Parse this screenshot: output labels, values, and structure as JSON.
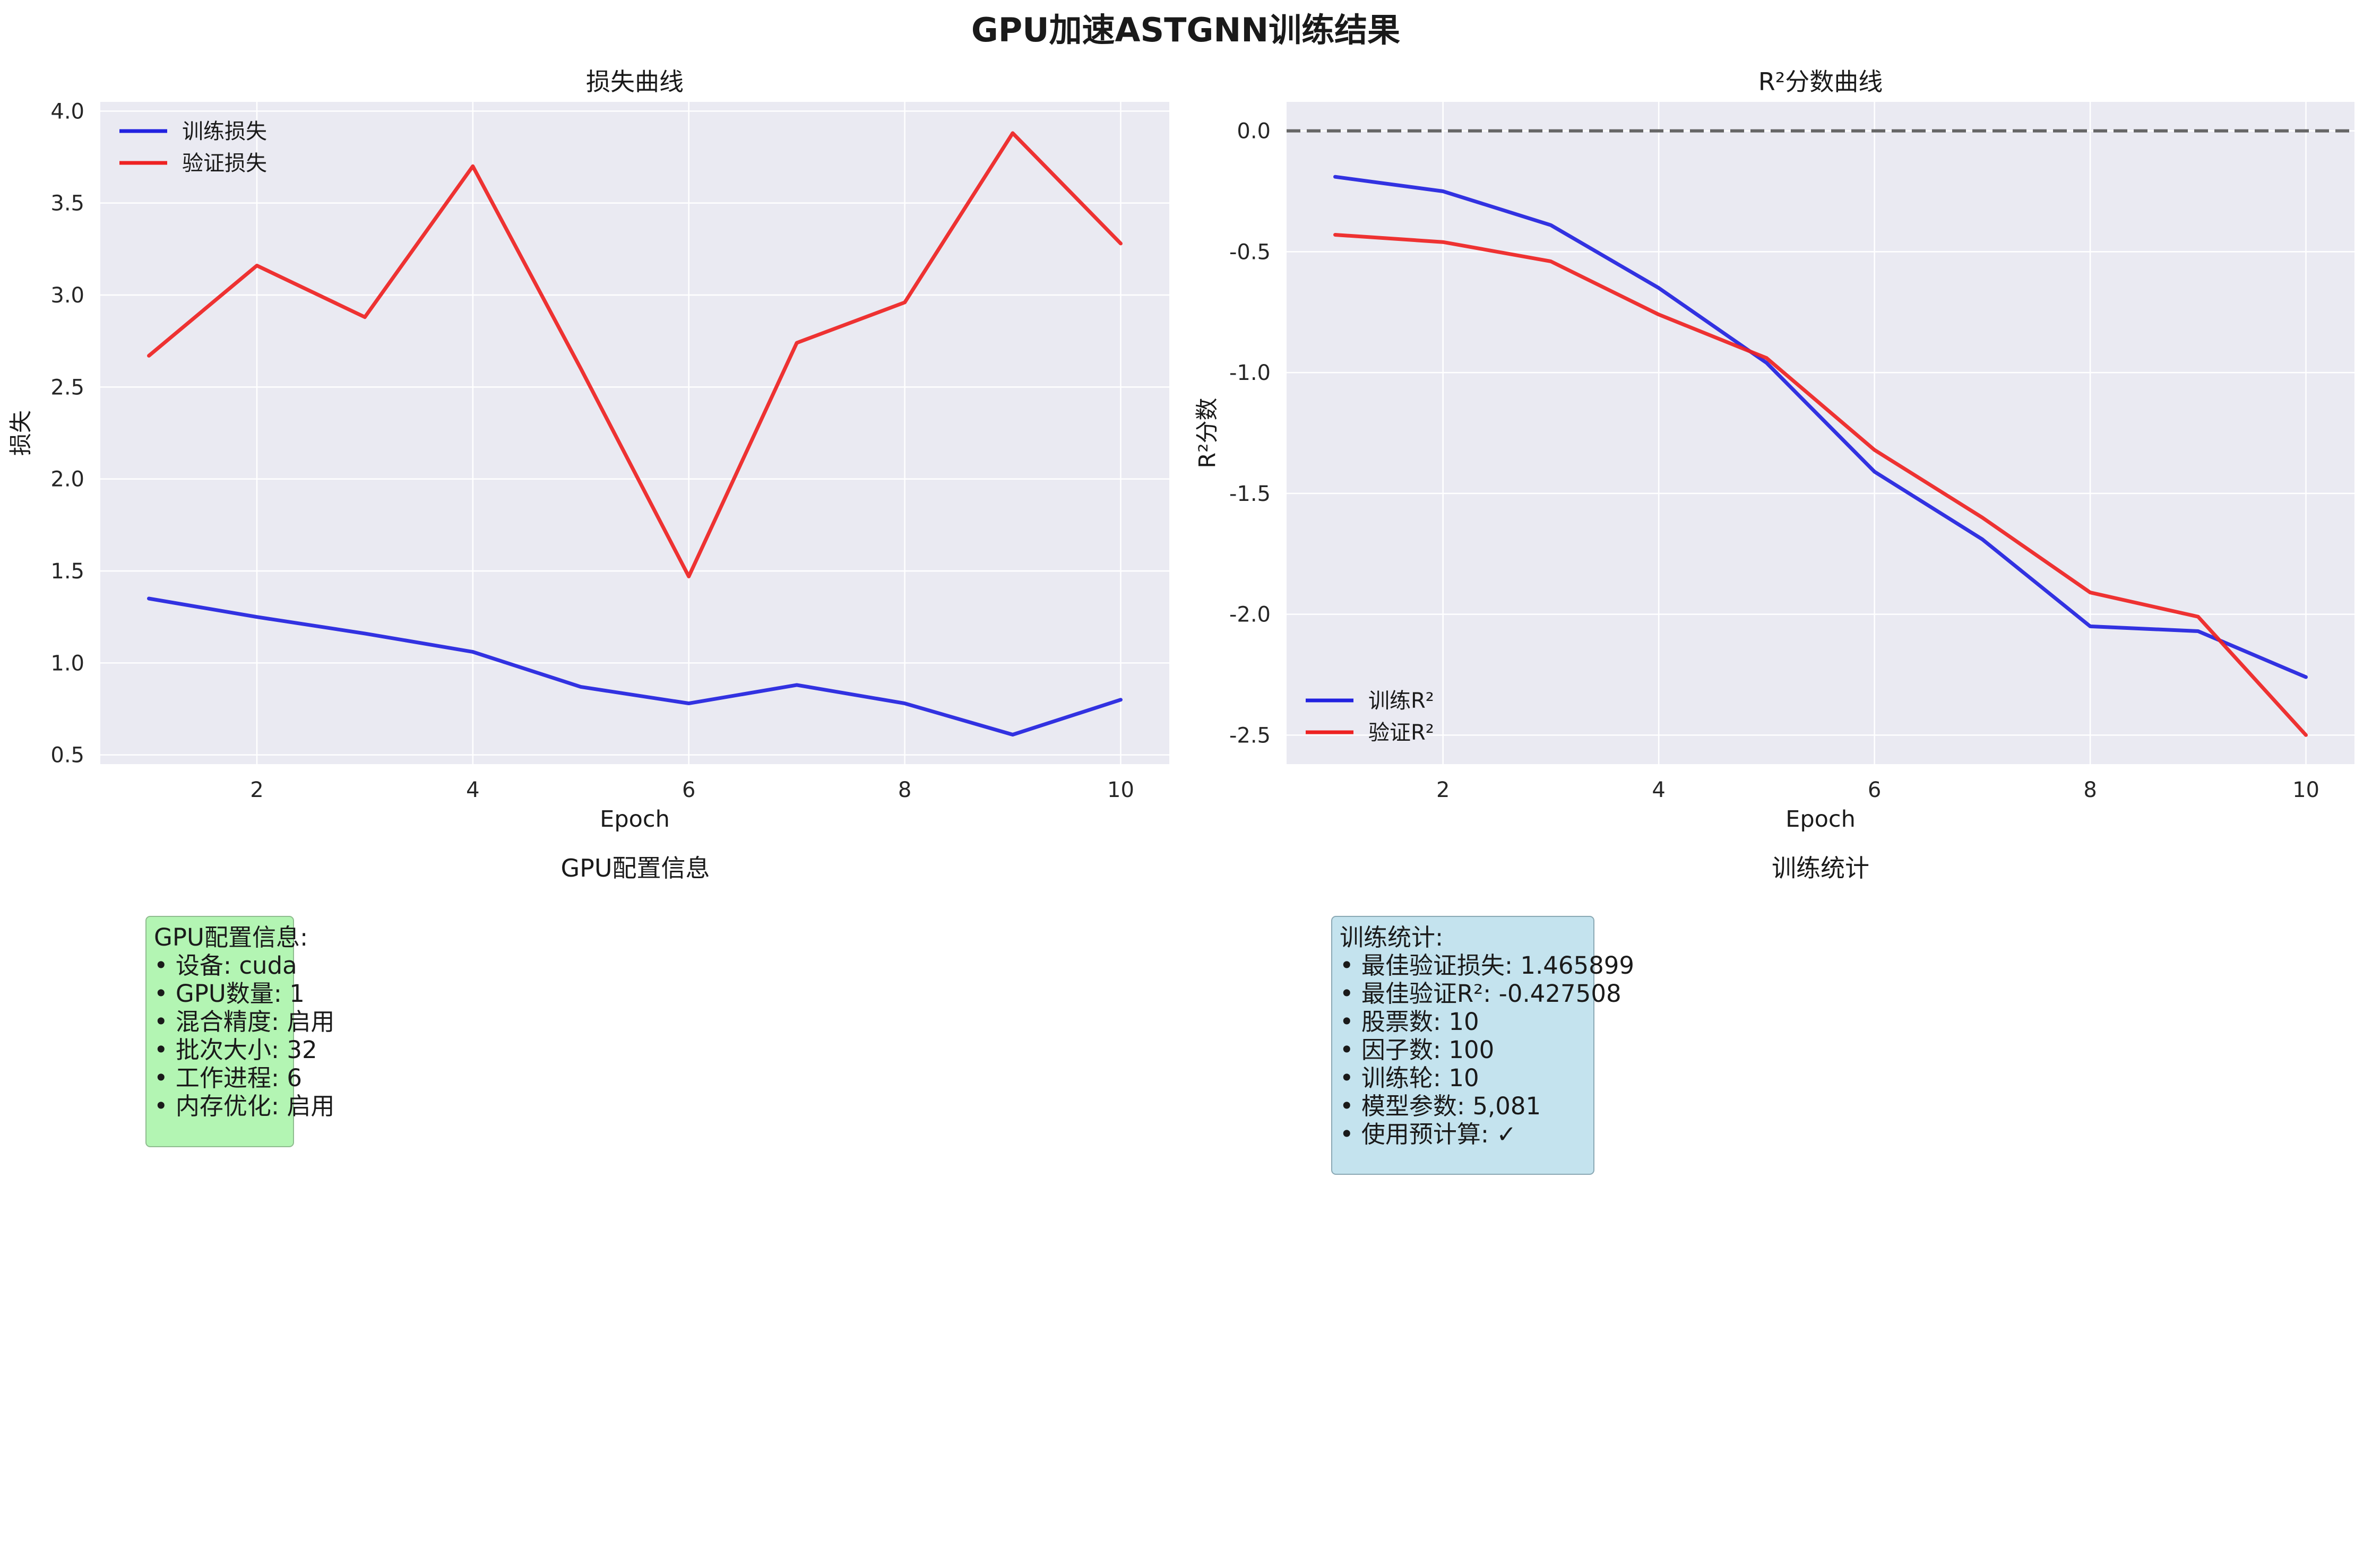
{
  "figure_title": "GPU加速ASTGNN训练结果",
  "chart_data": [
    {
      "type": "line",
      "title": "损失曲线",
      "xlabel": "Epoch",
      "ylabel": "损失",
      "x": [
        1,
        2,
        3,
        4,
        5,
        6,
        7,
        8,
        9,
        10
      ],
      "xticks": [
        2,
        4,
        6,
        8,
        10
      ],
      "yticks": [
        0.5,
        1.0,
        1.5,
        2.0,
        2.5,
        3.0,
        3.5,
        4.0
      ],
      "xlim": [
        0.55,
        10.45
      ],
      "ylim": [
        0.45,
        4.05
      ],
      "grid": true,
      "legend": "top-left",
      "series": [
        {
          "name": "训练损失",
          "color": "#2222e0",
          "values": [
            1.35,
            1.25,
            1.16,
            1.06,
            0.87,
            0.78,
            0.88,
            0.78,
            0.61,
            0.8
          ]
        },
        {
          "name": "验证损失",
          "color": "#ee2222",
          "values": [
            2.67,
            3.16,
            2.88,
            3.7,
            2.6,
            1.47,
            2.74,
            2.96,
            3.88,
            3.28
          ]
        }
      ]
    },
    {
      "type": "line",
      "title": "R²分数曲线",
      "xlabel": "Epoch",
      "ylabel": "R²分数",
      "x": [
        1,
        2,
        3,
        4,
        5,
        6,
        7,
        8,
        9,
        10
      ],
      "xticks": [
        2,
        4,
        6,
        8,
        10
      ],
      "yticks": [
        0.0,
        -0.5,
        -1.0,
        -1.5,
        -2.0,
        -2.5
      ],
      "xlim": [
        0.55,
        10.45
      ],
      "ylim": [
        -2.62,
        0.12
      ],
      "grid": true,
      "legend": "bottom-left",
      "reference_line": {
        "y": 0,
        "style": "dashed",
        "color": "#666666"
      },
      "series": [
        {
          "name": "训练R²",
          "color": "#2222e0",
          "values": [
            -0.19,
            -0.25,
            -0.39,
            -0.65,
            -0.96,
            -1.41,
            -1.69,
            -2.05,
            -2.07,
            -2.26
          ]
        },
        {
          "name": "验证R²",
          "color": "#ee2222",
          "values": [
            -0.43,
            -0.46,
            -0.54,
            -0.76,
            -0.94,
            -1.32,
            -1.6,
            -1.91,
            -2.01,
            -2.5
          ]
        }
      ]
    }
  ],
  "gpu_panel": {
    "title": "GPU配置信息",
    "lines": [
      "GPU配置信息:",
      "• 设备: cuda",
      "• GPU数量: 1",
      "• 混合精度: 启用",
      "• 批次大小: 32",
      "• 工作进程: 6",
      "• 内存优化: 启用"
    ]
  },
  "stats_panel": {
    "title": "训练统计",
    "lines": [
      "训练统计:",
      "• 最佳验证损失: 1.465899",
      "• 最佳验证R²: -0.427508",
      "• 股票数: 10",
      "• 因子数: 100",
      "• 训练轮: 10",
      "• 模型参数: 5,081",
      "• 使用预计算: ✓"
    ]
  },
  "colors": {
    "plot_bg": "#eaeaf2",
    "grid": "#ffffff",
    "gpu_box_bg": "#b3f5b3",
    "stats_box_bg": "#c4e3ee"
  }
}
